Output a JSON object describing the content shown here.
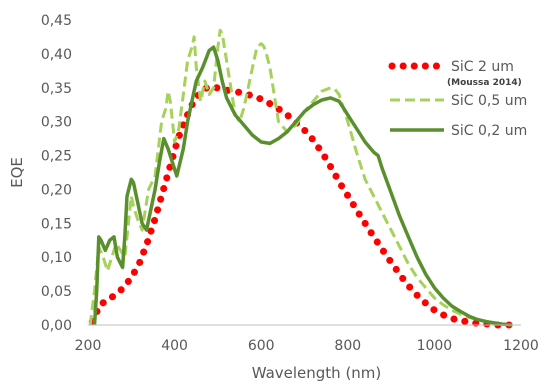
{
  "chart_data": {
    "type": "line",
    "xlabel": "Wavelength (nm)",
    "ylabel": "EQE",
    "xlim": [
      200,
      1200
    ],
    "ylim": [
      0,
      0.45
    ],
    "x_ticks": [
      "200",
      "400",
      "600",
      "800",
      "1000",
      "1200"
    ],
    "y_ticks": [
      "0,00",
      "0,05",
      "0,10",
      "0,15",
      "0,20",
      "0,25",
      "0,30",
      "0,35",
      "0,40",
      "0,45"
    ],
    "grid": false,
    "legend_position": "top-right",
    "series": [
      {
        "name": "SiC 2 um",
        "annotation": "(Moussa 2014)",
        "style": "dotted",
        "color": "#ff0000",
        "x": [
          210,
          228,
          246,
          264,
          282,
          300,
          318,
          336,
          354,
          372,
          390,
          408,
          426,
          444,
          462,
          480,
          498,
          516,
          534,
          552,
          570,
          588,
          606,
          624,
          642,
          660,
          678,
          696,
          714,
          732,
          750,
          768,
          786,
          804,
          822,
          840,
          858,
          876,
          894,
          912,
          930,
          948,
          966,
          984,
          1002,
          1020,
          1038,
          1056,
          1074,
          1092,
          1110,
          1128,
          1146,
          1164,
          1182
        ],
        "y": [
          0.005,
          0.03,
          0.037,
          0.045,
          0.055,
          0.07,
          0.09,
          0.12,
          0.155,
          0.195,
          0.235,
          0.275,
          0.305,
          0.33,
          0.345,
          0.352,
          0.35,
          0.347,
          0.345,
          0.343,
          0.34,
          0.336,
          0.332,
          0.325,
          0.318,
          0.31,
          0.3,
          0.29,
          0.278,
          0.262,
          0.245,
          0.225,
          0.205,
          0.187,
          0.168,
          0.15,
          0.132,
          0.115,
          0.098,
          0.082,
          0.066,
          0.052,
          0.04,
          0.03,
          0.021,
          0.015,
          0.01,
          0.007,
          0.005,
          0.003,
          0.002,
          0.001,
          0.0,
          0.0,
          0.0
        ]
      },
      {
        "name": "SiC 0,5 um",
        "style": "dashed",
        "color": "#a6d15a",
        "x": [
          205,
          215,
          225,
          235,
          245,
          255,
          265,
          275,
          285,
          290,
          295,
          300,
          305,
          315,
          325,
          340,
          355,
          370,
          380,
          385,
          390,
          400,
          410,
          420,
          430,
          440,
          445,
          450,
          460,
          470,
          480,
          490,
          500,
          505,
          510,
          520,
          530,
          540,
          550,
          560,
          570,
          580,
          590,
          600,
          605,
          610,
          620,
          630,
          640,
          660,
          680,
          700,
          720,
          740,
          760,
          770,
          780,
          800,
          820,
          840,
          860,
          880,
          900,
          920,
          940,
          960,
          980,
          1000,
          1020,
          1040,
          1060,
          1080,
          1100,
          1120,
          1140,
          1160,
          1180
        ],
        "y": [
          0.0,
          0.05,
          0.115,
          0.1,
          0.08,
          0.1,
          0.12,
          0.11,
          0.1,
          0.13,
          0.16,
          0.19,
          0.175,
          0.155,
          0.14,
          0.2,
          0.22,
          0.3,
          0.32,
          0.345,
          0.33,
          0.27,
          0.29,
          0.34,
          0.39,
          0.41,
          0.425,
          0.38,
          0.33,
          0.36,
          0.34,
          0.35,
          0.41,
          0.435,
          0.43,
          0.39,
          0.35,
          0.31,
          0.3,
          0.32,
          0.35,
          0.38,
          0.41,
          0.415,
          0.412,
          0.405,
          0.38,
          0.34,
          0.3,
          0.285,
          0.295,
          0.315,
          0.33,
          0.345,
          0.35,
          0.348,
          0.34,
          0.3,
          0.255,
          0.215,
          0.19,
          0.165,
          0.14,
          0.115,
          0.09,
          0.07,
          0.055,
          0.04,
          0.03,
          0.022,
          0.016,
          0.011,
          0.008,
          0.005,
          0.003,
          0.001,
          0.0
        ]
      },
      {
        "name": "SiC 0,2 um",
        "style": "solid",
        "color": "#5a8f2e",
        "x": [
          215,
          220,
          225,
          230,
          240,
          250,
          260,
          268,
          280,
          285,
          290,
          300,
          305,
          315,
          325,
          335,
          345,
          355,
          365,
          375,
          385,
          395,
          405,
          420,
          430,
          440,
          450,
          465,
          480,
          490,
          500,
          510,
          520,
          540,
          560,
          580,
          600,
          620,
          640,
          660,
          680,
          700,
          720,
          740,
          760,
          780,
          790,
          800,
          810,
          820,
          840,
          860,
          870,
          880,
          900,
          920,
          940,
          960,
          980,
          1000,
          1020,
          1040,
          1060,
          1080,
          1100,
          1120,
          1140,
          1160,
          1180
        ],
        "y": [
          0.0,
          0.05,
          0.13,
          0.125,
          0.11,
          0.125,
          0.13,
          0.1,
          0.085,
          0.13,
          0.19,
          0.215,
          0.21,
          0.18,
          0.15,
          0.14,
          0.17,
          0.2,
          0.24,
          0.275,
          0.26,
          0.24,
          0.22,
          0.26,
          0.3,
          0.33,
          0.36,
          0.38,
          0.405,
          0.41,
          0.39,
          0.36,
          0.335,
          0.31,
          0.295,
          0.28,
          0.27,
          0.268,
          0.275,
          0.285,
          0.3,
          0.315,
          0.325,
          0.332,
          0.335,
          0.33,
          0.32,
          0.31,
          0.3,
          0.29,
          0.27,
          0.255,
          0.25,
          0.23,
          0.195,
          0.16,
          0.13,
          0.1,
          0.075,
          0.055,
          0.04,
          0.028,
          0.02,
          0.013,
          0.008,
          0.005,
          0.003,
          0.001,
          0.0
        ]
      }
    ]
  }
}
